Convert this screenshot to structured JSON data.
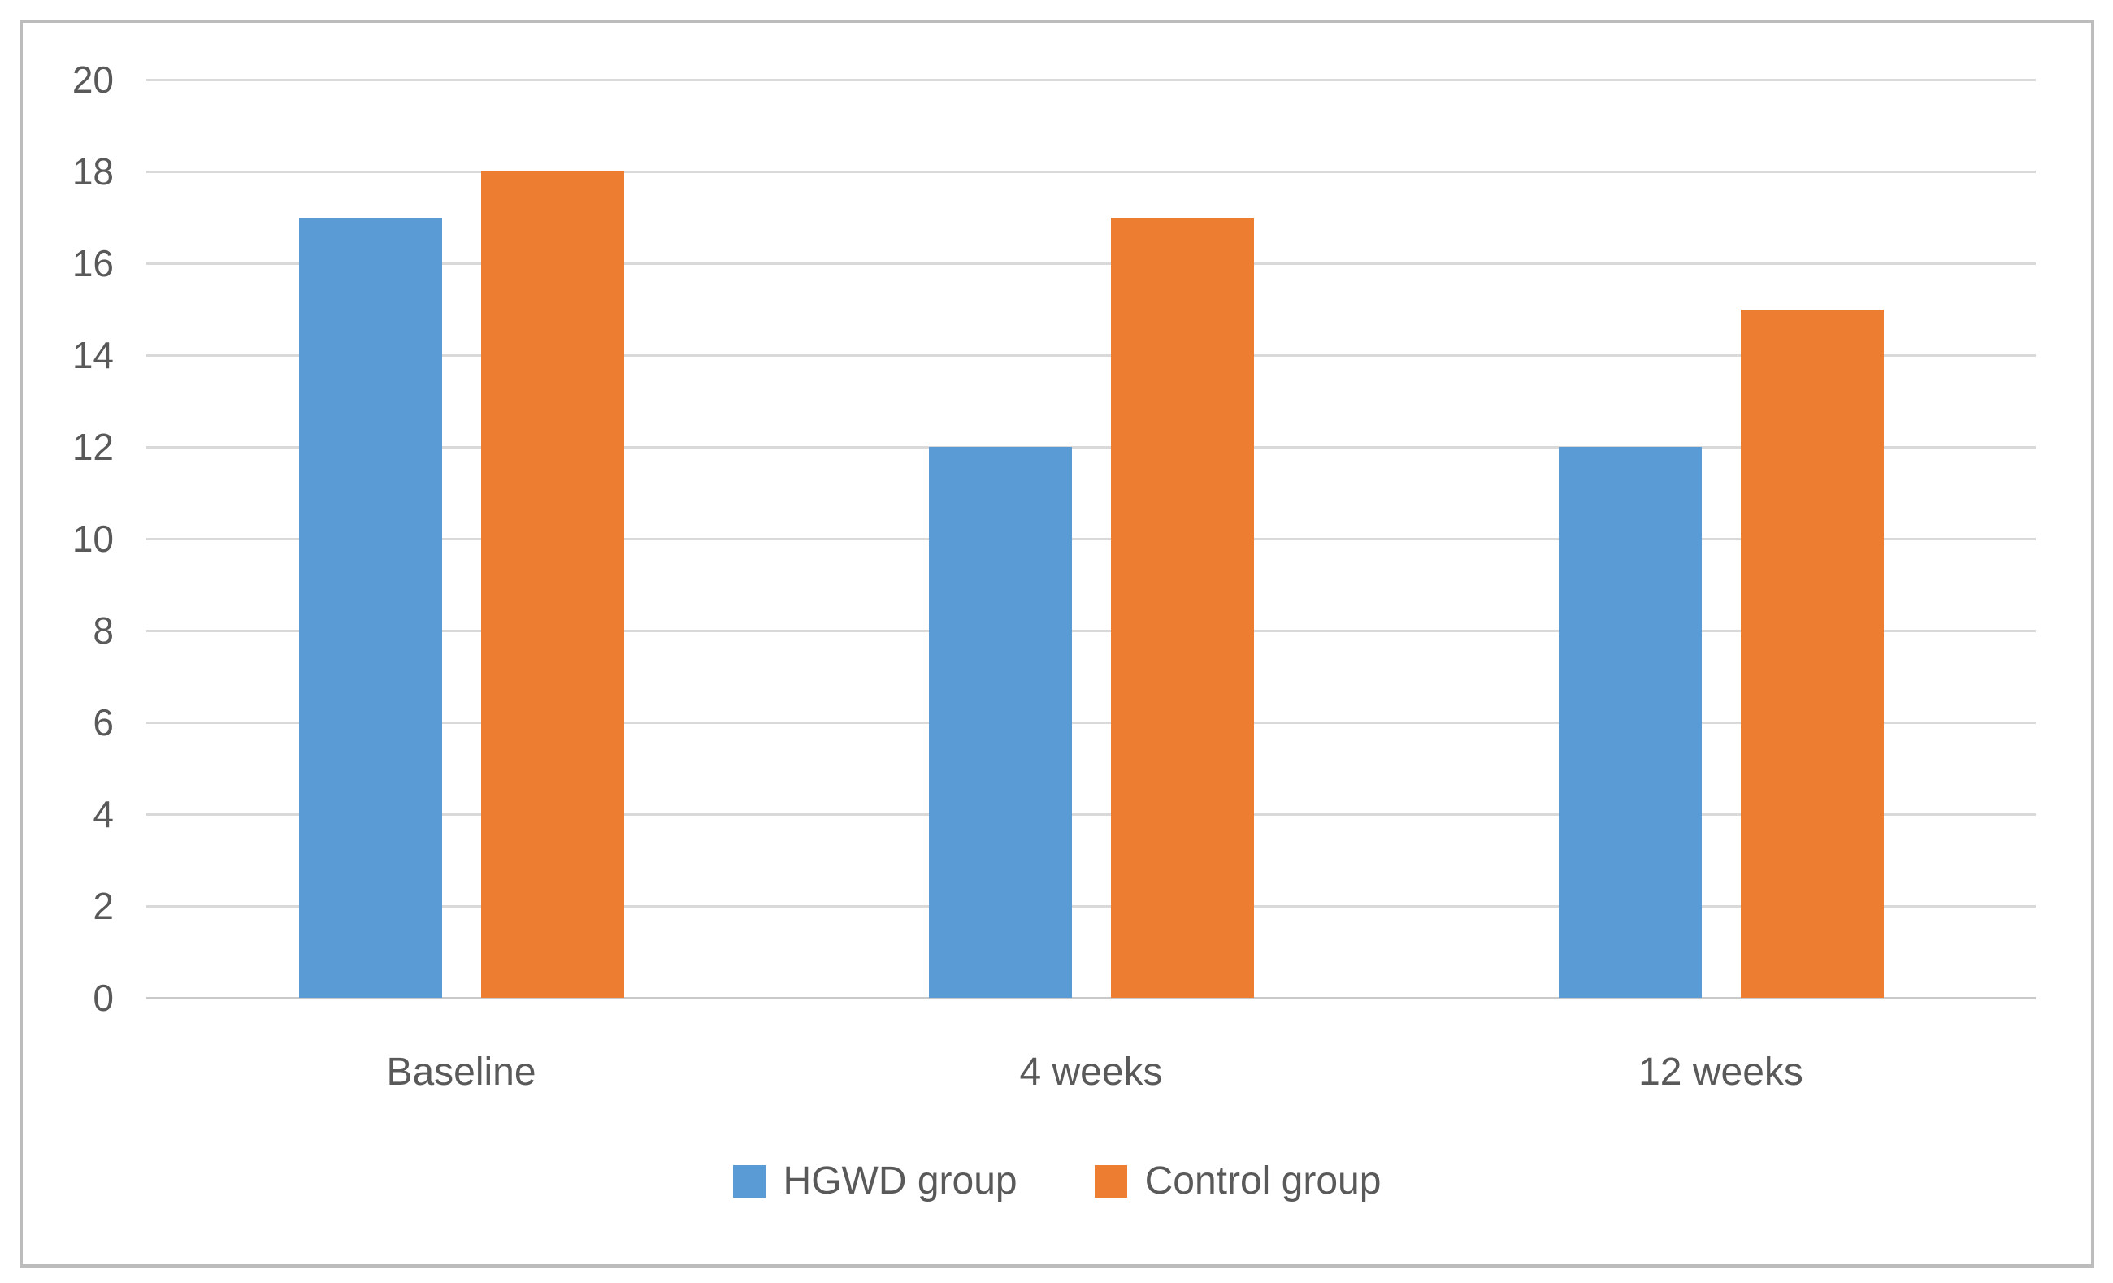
{
  "chart_data": {
    "type": "bar",
    "title": "",
    "xlabel": "",
    "ylabel": "",
    "categories": [
      "Baseline",
      "4 weeks",
      "12 weeks"
    ],
    "series": [
      {
        "name": "HGWD group",
        "color": "#5B9BD5",
        "values": [
          17,
          12,
          12
        ]
      },
      {
        "name": "Control group",
        "color": "#ED7D31",
        "values": [
          18,
          17,
          15
        ]
      }
    ],
    "ylim": [
      0,
      20
    ],
    "yticks": [
      0,
      2,
      4,
      6,
      8,
      10,
      12,
      14,
      16,
      18,
      20
    ],
    "grid": true,
    "legend_position": "bottom"
  },
  "colors": {
    "axis_text": "#595959",
    "gridline": "#D9D9D9",
    "chart_border": "#BCBCBC",
    "background": "#FFFFFF"
  }
}
